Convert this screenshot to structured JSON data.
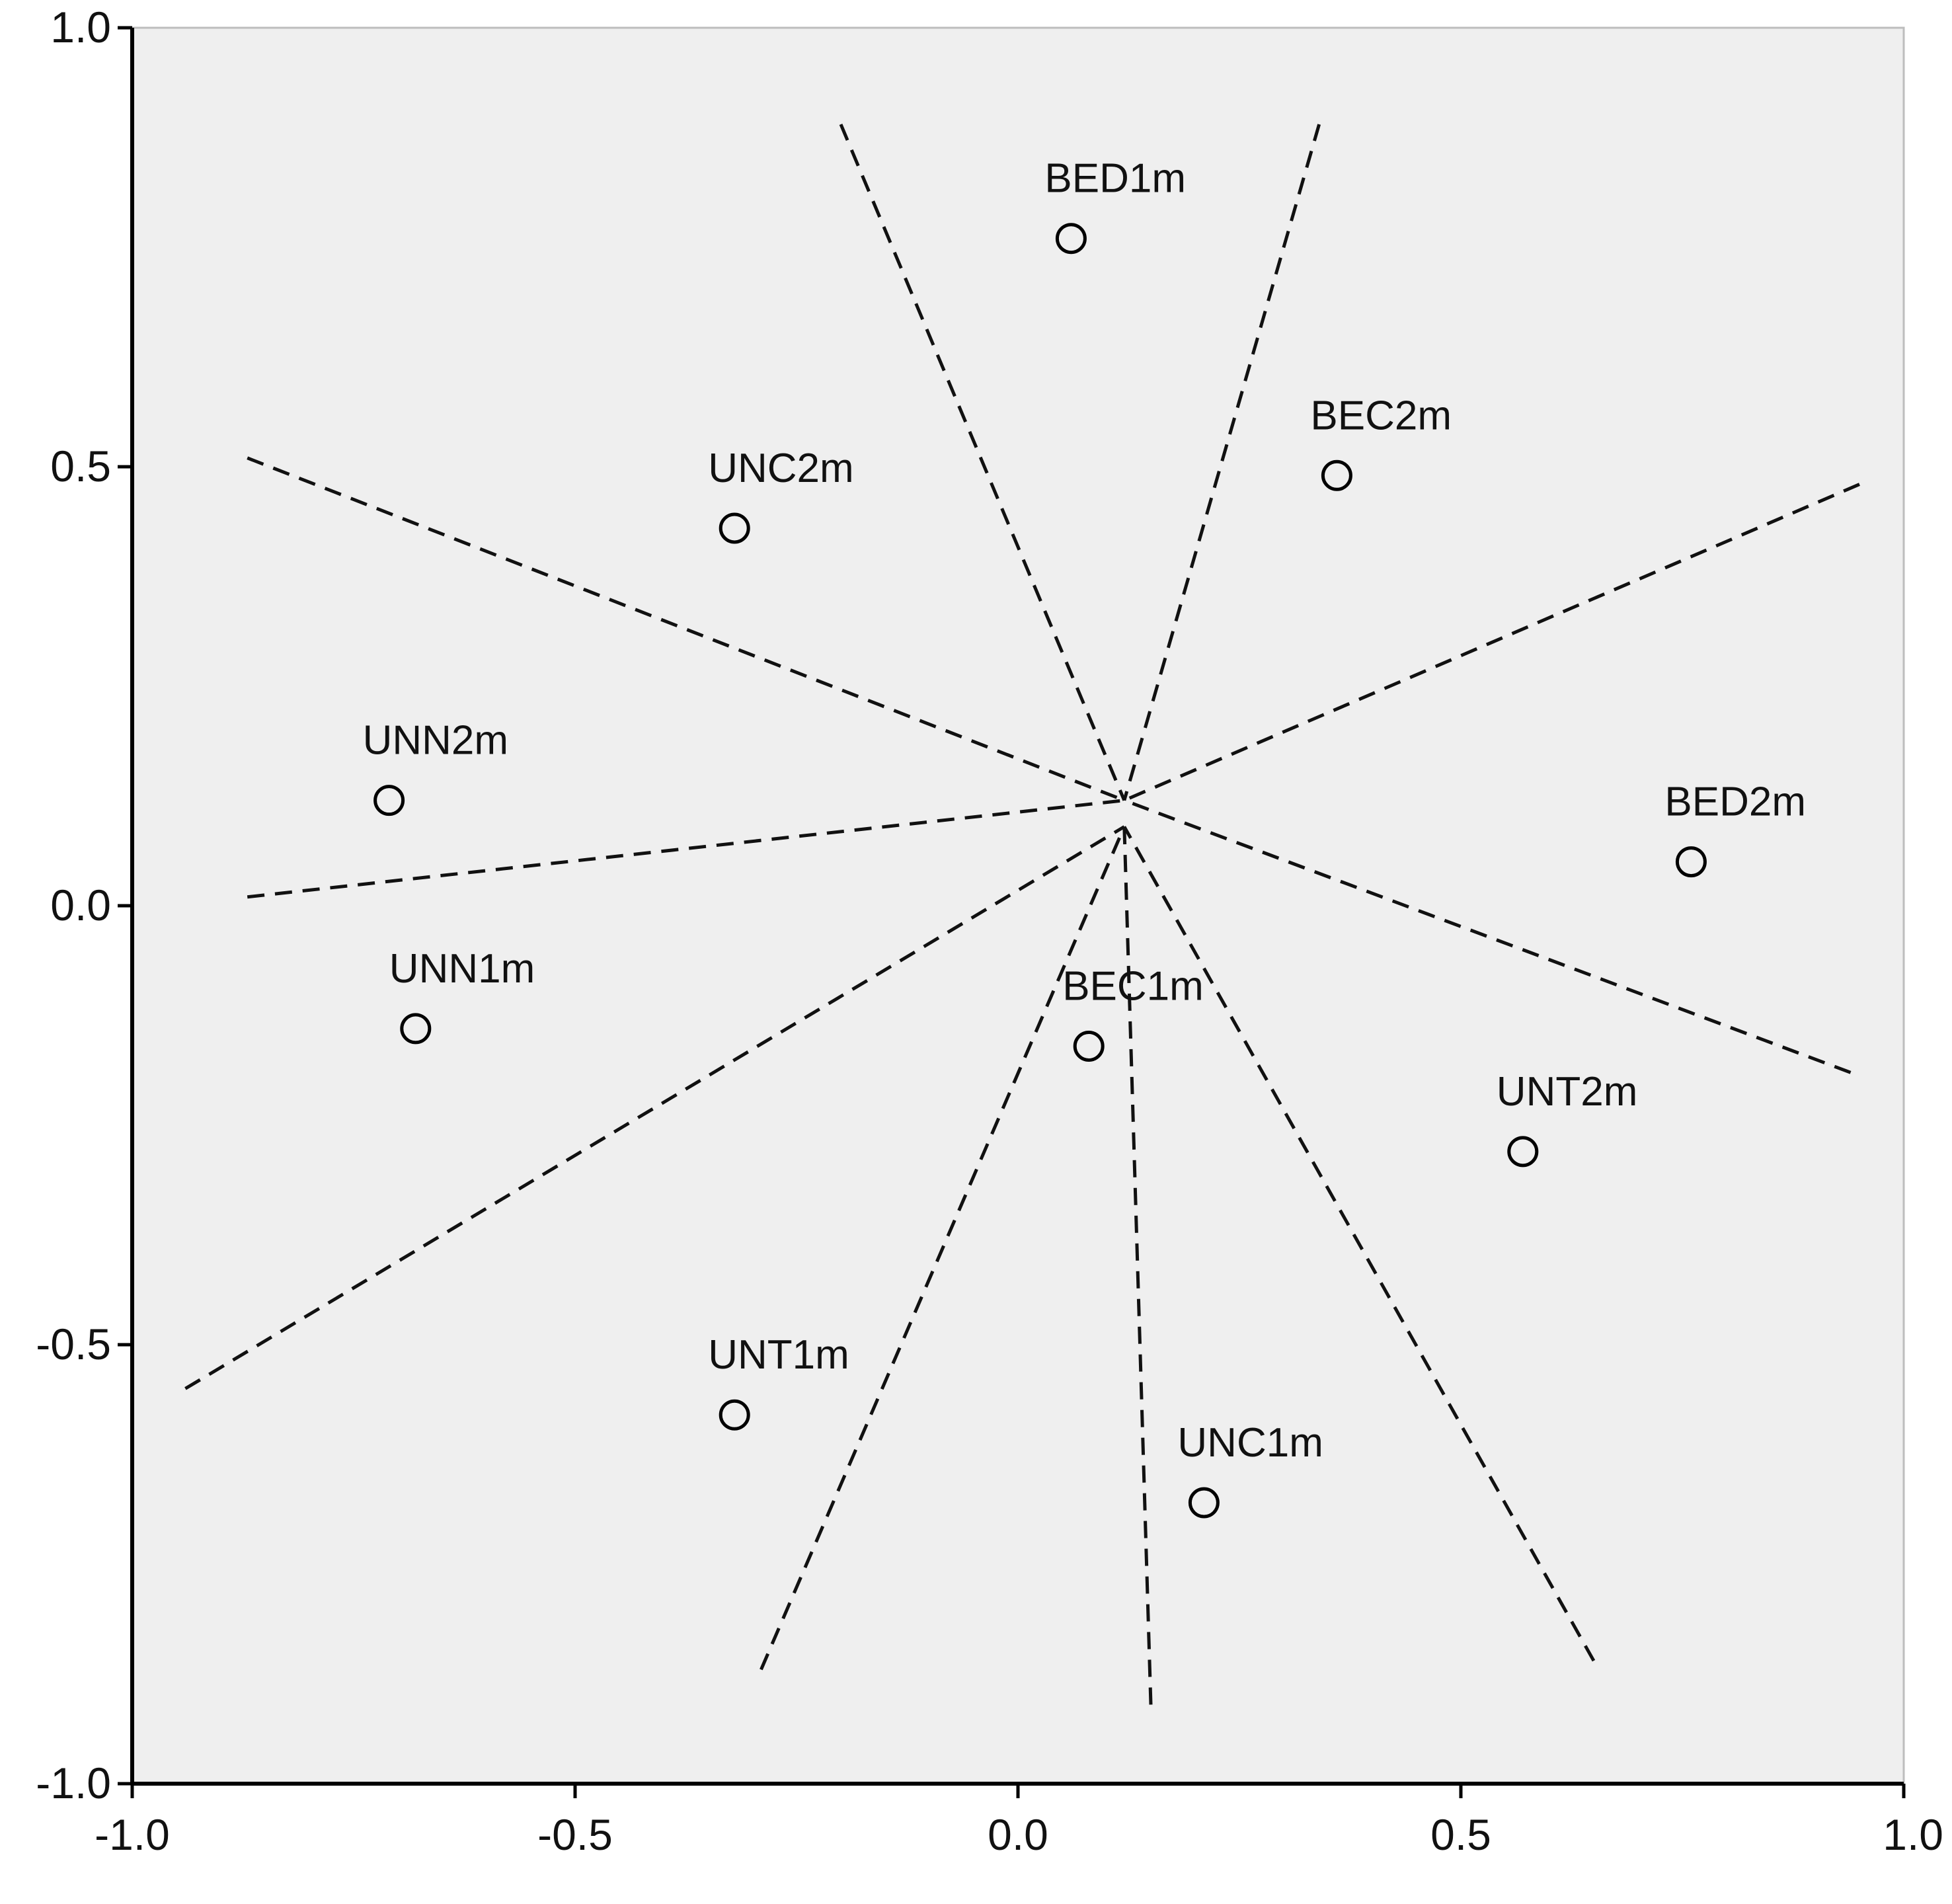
{
  "chart_data": {
    "type": "scatter",
    "title": "",
    "xlabel": "",
    "ylabel": "",
    "xlim": [
      -1.0,
      1.0
    ],
    "ylim": [
      -1.0,
      1.0
    ],
    "x_ticks": [
      -1.0,
      -0.5,
      0.0,
      0.5,
      1.0
    ],
    "x_tick_labels": [
      "-1.0",
      "-0.5",
      "0.0",
      "0.5",
      "1.0"
    ],
    "y_ticks": [
      -1.0,
      -0.5,
      0.0,
      0.5,
      1.0
    ],
    "y_tick_labels": [
      "-1.0",
      "-0.5",
      "0.0",
      "0.5",
      "1.0"
    ],
    "grid": false,
    "colors": {
      "plot_background": "#efefef",
      "axis": "#000000",
      "marker": "#000000"
    },
    "points": [
      {
        "label": "BED1m",
        "x": 0.06,
        "y": 0.76
      },
      {
        "label": "BEC2m",
        "x": 0.36,
        "y": 0.49
      },
      {
        "label": "UNC2m",
        "x": -0.32,
        "y": 0.43
      },
      {
        "label": "UNN2m",
        "x": -0.71,
        "y": 0.12
      },
      {
        "label": "BED2m",
        "x": 0.76,
        "y": 0.05
      },
      {
        "label": "UNN1m",
        "x": -0.68,
        "y": -0.14
      },
      {
        "label": "BEC1m",
        "x": 0.08,
        "y": -0.16
      },
      {
        "label": "UNT2m",
        "x": 0.57,
        "y": -0.28
      },
      {
        "label": "UNT1m",
        "x": -0.32,
        "y": -0.58
      },
      {
        "label": "UNC1m",
        "x": 0.21,
        "y": -0.68
      }
    ],
    "dividing_lines": [
      {
        "from": [
          -0.2,
          0.89
        ],
        "to": [
          0.12,
          0.12
        ]
      },
      {
        "from": [
          0.34,
          0.89
        ],
        "to": [
          0.12,
          0.12
        ]
      },
      {
        "from": [
          -0.87,
          0.51
        ],
        "to": [
          0.12,
          0.12
        ]
      },
      {
        "from": [
          0.95,
          0.48
        ],
        "to": [
          0.12,
          0.12
        ]
      },
      {
        "from": [
          -0.87,
          0.01
        ],
        "to": [
          0.12,
          0.12
        ]
      },
      {
        "from": [
          0.94,
          -0.19
        ],
        "to": [
          0.12,
          0.12
        ]
      },
      {
        "from": [
          -0.94,
          -0.55
        ],
        "to": [
          0.12,
          0.09
        ]
      },
      {
        "from": [
          -0.29,
          -0.87
        ],
        "to": [
          0.12,
          0.09
        ]
      },
      {
        "from": [
          0.15,
          -0.91
        ],
        "to": [
          0.12,
          0.09
        ]
      },
      {
        "from": [
          0.65,
          -0.86
        ],
        "to": [
          0.12,
          0.09
        ]
      }
    ]
  }
}
